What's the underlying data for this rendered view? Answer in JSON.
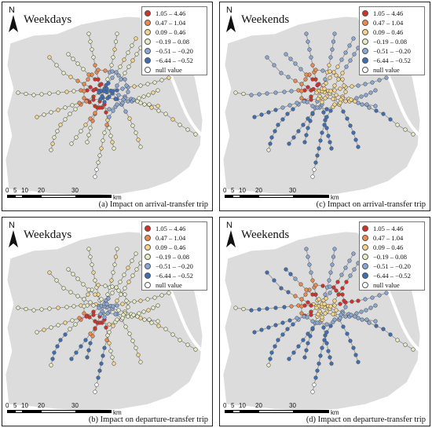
{
  "north_label": "N",
  "legend": [
    {
      "label": "1.05 – 4.46",
      "color": "#d62f27"
    },
    {
      "label": "0.47 – 1.04",
      "color": "#f08a4b"
    },
    {
      "label": "0.09 – 0.46",
      "color": "#f6d58b"
    },
    {
      "label": "−0.19 – 0.08",
      "color": "#e6ecc4"
    },
    {
      "label": "−0.51 – −0.20",
      "color": "#8aa8d6"
    },
    {
      "label": "−6.44 – −0.52",
      "color": "#3d6fb6"
    },
    {
      "label": "null value",
      "color": "#ffffff"
    }
  ],
  "scale": {
    "ticks": [
      "0",
      "5",
      "10",
      "20",
      "30"
    ],
    "unit": "km"
  },
  "colors": {
    "land": "#dcdcdc",
    "water": "#ffffff",
    "outline": "#222222"
  },
  "panels": [
    {
      "title": "Weekdays",
      "caption": "(a) Impact on arrival-transfer trip",
      "scheme": "a"
    },
    {
      "title": "Weekends",
      "caption": "(c) Impact on arrival-transfer trip",
      "scheme": "c"
    },
    {
      "title": "Weekdays",
      "caption": "(b) Impact on departure-transfer trip",
      "scheme": "b"
    },
    {
      "title": "Weekends",
      "caption": "(d) Impact on departure-transfer trip",
      "scheme": "d"
    }
  ]
}
